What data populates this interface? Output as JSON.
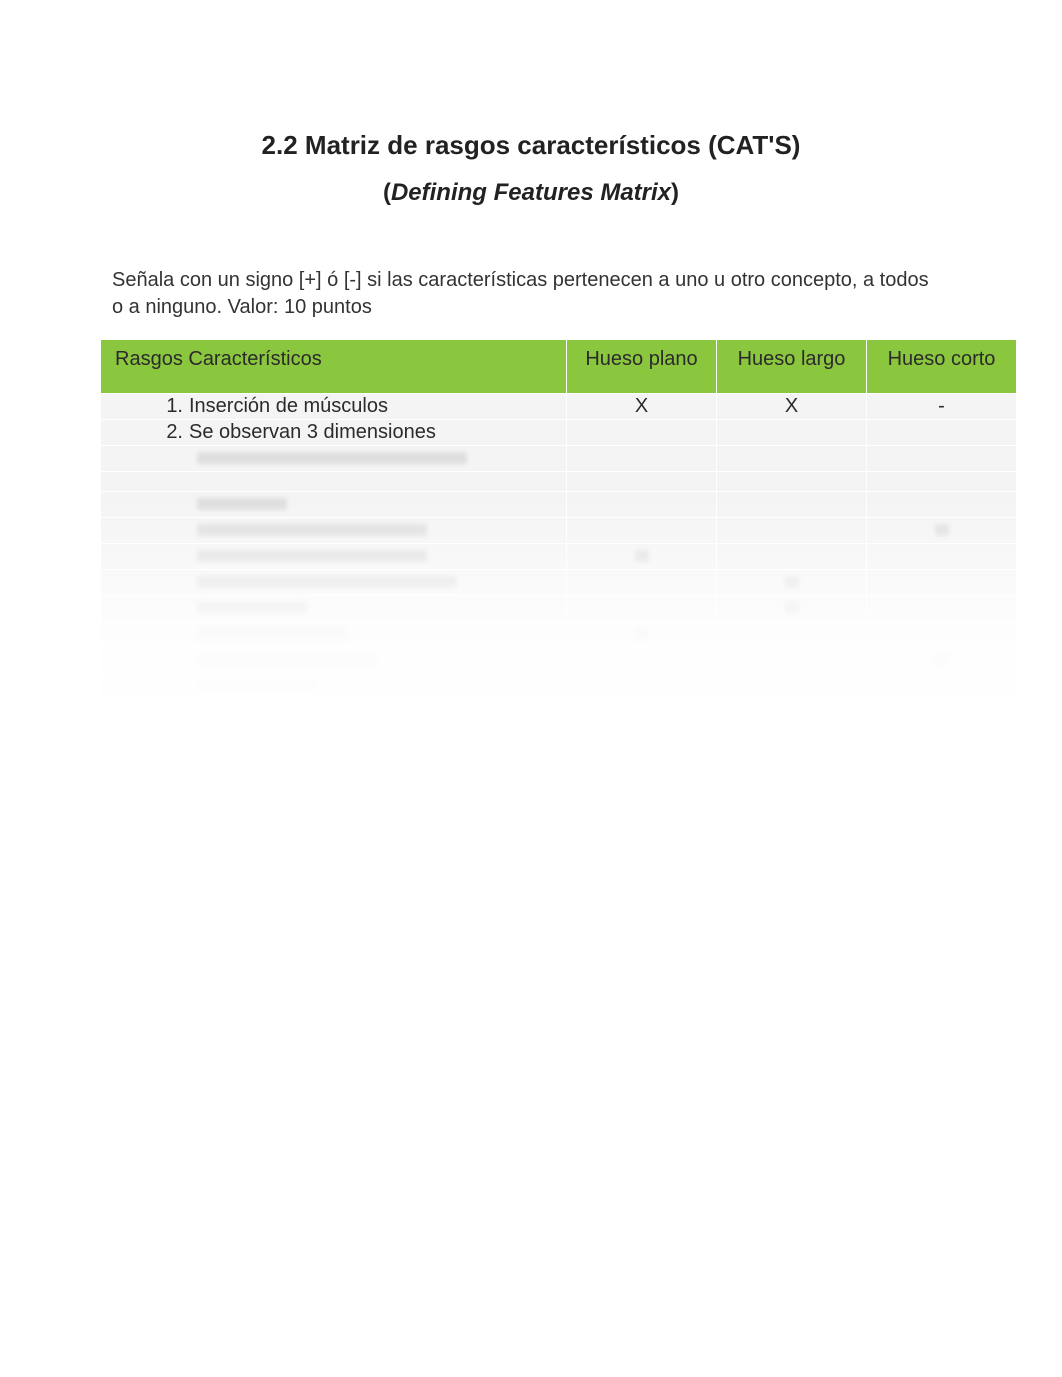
{
  "colors": {
    "header_bg": "#8bc63f",
    "row_bg": "#f4f4f4",
    "border": "#ffffff",
    "text": "#2b2b2b",
    "ghost": "#d0d0d0"
  },
  "title": {
    "line1": "2.2 Matriz de rasgos característicos (CAT'S)",
    "line2_open": "(",
    "line2_italic": "Defining Features Matrix",
    "line2_close": ")"
  },
  "instructions": "Señala con un signo  [+]   ó  [-]    si las características pertenecen a uno u otro concepto,  a todos o a ninguno. Valor: 10 puntos",
  "table": {
    "columns": {
      "feature_header": "Rasgos Característicos",
      "col1": "Hueso plano",
      "col2": "Hueso largo",
      "col3": "Hueso corto"
    },
    "rows": [
      {
        "num": "1.",
        "label": "Inserción de músculos",
        "plano": "X",
        "largo": "X",
        "corto": "-"
      },
      {
        "num": "2.",
        "label": "Se observan  3 dimensiones",
        "plano": "",
        "largo": "",
        "corto": ""
      }
    ],
    "blurred_rows": [
      {
        "ghost_width": 270,
        "marks": {
          "plano": false,
          "largo": false,
          "corto": false
        }
      },
      {
        "gap": true
      },
      {
        "ghost_width": 90,
        "marks": {
          "plano": false,
          "largo": false,
          "corto": false
        }
      },
      {
        "ghost_width": 230,
        "marks": {
          "plano": false,
          "largo": false,
          "corto": true
        }
      },
      {
        "ghost_width": 230,
        "marks": {
          "plano": true,
          "largo": false,
          "corto": false
        }
      },
      {
        "ghost_width": 260,
        "marks": {
          "plano": false,
          "largo": true,
          "corto": false
        }
      },
      {
        "ghost_width": 110,
        "marks": {
          "plano": false,
          "largo": true,
          "corto": false
        }
      },
      {
        "ghost_width": 150,
        "marks": {
          "plano": true,
          "largo": false,
          "corto": false
        }
      },
      {
        "ghost_width": 180,
        "marks": {
          "plano": false,
          "largo": false,
          "corto": true
        }
      },
      {
        "ghost_width": 120,
        "marks": {
          "plano": false,
          "largo": false,
          "corto": false
        }
      }
    ]
  }
}
